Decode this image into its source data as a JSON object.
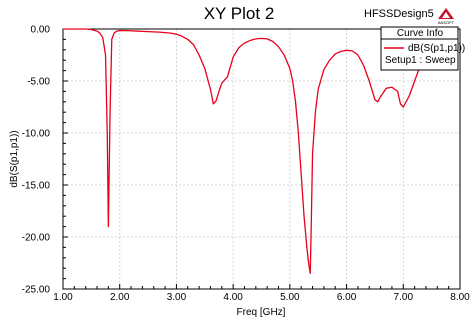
{
  "chart_data": {
    "type": "line",
    "title": "XY Plot 2",
    "design_name": "HFSSDesign5",
    "logo_text": "ANSOFT",
    "xlabel": "Freq [GHz]",
    "ylabel": "dB(S(p1,p1))",
    "xlim": [
      1.0,
      8.0
    ],
    "ylim": [
      -25.0,
      0.0
    ],
    "x_ticks": [
      "1.00",
      "2.00",
      "3.00",
      "4.00",
      "5.00",
      "6.00",
      "7.00",
      "8.00"
    ],
    "y_ticks": [
      "0.00",
      "-5.00",
      "-10.00",
      "-15.00",
      "-20.00",
      "-25.00"
    ],
    "grid": true,
    "legend": {
      "placement": "top-right",
      "header": "Curve Info",
      "entries": [
        {
          "name": "dB(S(p1,p1))",
          "subtitle": "Setup1 : Sweep",
          "color": "#e8001c"
        }
      ]
    },
    "series": [
      {
        "name": "dB(S(p1,p1))",
        "color": "#e8001c",
        "x": [
          1.0,
          1.2,
          1.4,
          1.5,
          1.6,
          1.65,
          1.7,
          1.75,
          1.78,
          1.8,
          1.83,
          1.86,
          1.9,
          1.95,
          2.0,
          2.1,
          2.3,
          2.5,
          2.7,
          2.9,
          3.0,
          3.1,
          3.2,
          3.3,
          3.4,
          3.5,
          3.55,
          3.6,
          3.65,
          3.7,
          3.75,
          3.8,
          3.9,
          4.0,
          4.1,
          4.2,
          4.3,
          4.4,
          4.5,
          4.6,
          4.7,
          4.8,
          4.9,
          5.0,
          5.05,
          5.1,
          5.15,
          5.2,
          5.25,
          5.3,
          5.33,
          5.36,
          5.38,
          5.4,
          5.45,
          5.5,
          5.6,
          5.7,
          5.8,
          5.9,
          6.0,
          6.1,
          6.2,
          6.3,
          6.4,
          6.5,
          6.55,
          6.6,
          6.7,
          6.8,
          6.9,
          6.95,
          7.0,
          7.1,
          7.2,
          7.3
        ],
        "y": [
          0.0,
          0.0,
          0.0,
          -0.05,
          -0.2,
          -0.4,
          -0.8,
          -2.5,
          -10.0,
          -19.0,
          -8.0,
          -1.0,
          -0.4,
          -0.2,
          -0.15,
          -0.15,
          -0.2,
          -0.25,
          -0.3,
          -0.4,
          -0.5,
          -0.7,
          -1.0,
          -1.5,
          -2.5,
          -3.8,
          -4.8,
          -5.8,
          -7.2,
          -6.9,
          -6.0,
          -5.2,
          -4.6,
          -2.7,
          -1.8,
          -1.35,
          -1.1,
          -0.95,
          -0.9,
          -0.95,
          -1.2,
          -1.7,
          -2.5,
          -3.8,
          -5.0,
          -7.0,
          -10.0,
          -14.0,
          -18.0,
          -21.0,
          -22.5,
          -23.5,
          -18.0,
          -12.0,
          -8.0,
          -5.8,
          -3.9,
          -3.0,
          -2.4,
          -2.15,
          -2.05,
          -2.1,
          -2.5,
          -3.5,
          -5.0,
          -6.8,
          -7.0,
          -6.5,
          -5.7,
          -5.6,
          -6.0,
          -7.2,
          -7.5,
          -6.5,
          -5.0,
          -3.5
        ]
      }
    ]
  }
}
